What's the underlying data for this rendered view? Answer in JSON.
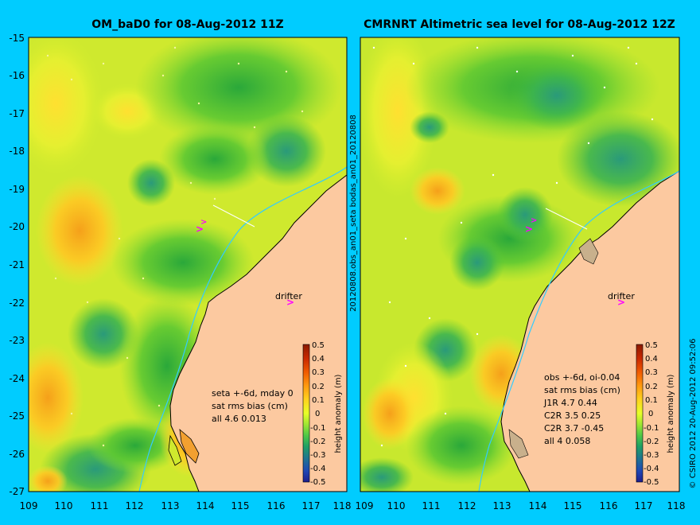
{
  "colors": {
    "background": "#00ccff",
    "land": "#fcc9a0",
    "coastline": "#000000",
    "track": "#33ccff",
    "drifter": "#ff00ff"
  },
  "left_panel": {
    "title": "OM_baD0 for 08-Aug-2012 11Z",
    "stats": [
      "seta +-6d, mday 0",
      "sat rms bias (cm)",
      "all 4.6 0.013"
    ],
    "drifter_label": "drifter"
  },
  "right_panel": {
    "title": "CMRNRT Altimetric sea level  for 08-Aug-2012 12Z",
    "stats": [
      "obs +-6d, oi-0.04",
      "sat rms bias (cm)",
      "J1R   4.7 0.44",
      "C2R   3.5 0.25",
      "C2R   3.7 -0.45",
      "all 4  0.058"
    ],
    "drifter_label": "drifter"
  },
  "side_labels": {
    "middle": "20120808.obs_an01_seta           bodas_an01_20120808",
    "right": "© CSIRO 2012   20-Aug-2012 09:52:06"
  },
  "axes": {
    "y_ticks": [
      "-15",
      "-16",
      "-17",
      "-18",
      "-19",
      "-20",
      "-21",
      "-22",
      "-23",
      "-24",
      "-25",
      "-26",
      "-27"
    ],
    "x_ticks": [
      "109",
      "110",
      "111",
      "112",
      "113",
      "114",
      "115",
      "116",
      "117",
      "118"
    ]
  },
  "colorbar": {
    "label": "height anomaly (m)",
    "ticks": [
      "0.5",
      "0.4",
      "0.3",
      "0.2",
      "0.1",
      "0",
      "-0.1",
      "-0.2",
      "-0.3",
      "-0.4",
      "-0.5"
    ],
    "colors": [
      "#8b1a00",
      "#c82800",
      "#f05a00",
      "#ff9a10",
      "#ffd21e",
      "#e8ff28",
      "#a0e632",
      "#50c846",
      "#1ea064",
      "#1e6e96",
      "#1e46b4",
      "#1e1e8c"
    ]
  }
}
